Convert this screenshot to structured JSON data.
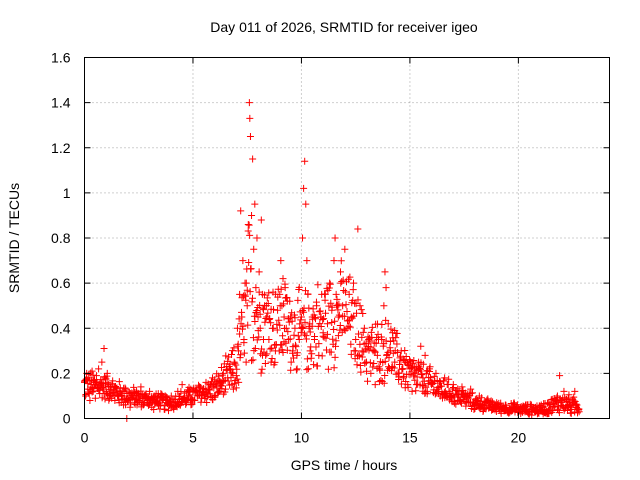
{
  "chart_data": {
    "type": "scatter",
    "title": "Day 011 of 2026, SRMTID for receiver igeo",
    "xlabel": "GPS time / hours",
    "ylabel": "SRMTID / TECUs",
    "xlim": [
      0,
      24.2
    ],
    "ylim": [
      0,
      1.6
    ],
    "xticks": [
      0,
      5,
      10,
      15,
      20
    ],
    "xtick_labels": [
      "0",
      "5",
      "10",
      "15",
      "20"
    ],
    "yticks": [
      0,
      0.2,
      0.4,
      0.6,
      0.8,
      1,
      1.2,
      1.4,
      1.6
    ],
    "ytick_labels": [
      "0",
      "0.2",
      "0.4",
      "0.6",
      "0.8",
      "1",
      "1.2",
      "1.4",
      "1.6"
    ],
    "grid": true,
    "marker": "+",
    "series": [
      {
        "name": "SRMTID",
        "color": "#ff0000",
        "points": [
          [
            0.0,
            0.16
          ],
          [
            0.05,
            0.1
          ],
          [
            0.1,
            0.2
          ],
          [
            0.15,
            0.13
          ],
          [
            0.2,
            0.18
          ],
          [
            0.25,
            0.08
          ],
          [
            0.3,
            0.15
          ],
          [
            0.35,
            0.21
          ],
          [
            0.4,
            0.12
          ],
          [
            0.45,
            0.17
          ],
          [
            0.5,
            0.09
          ],
          [
            0.55,
            0.19
          ],
          [
            0.6,
            0.14
          ],
          [
            0.65,
            0.22
          ],
          [
            0.7,
            0.11
          ],
          [
            0.75,
            0.16
          ],
          [
            0.8,
            0.25
          ],
          [
            0.85,
            0.13
          ],
          [
            0.9,
            0.31
          ],
          [
            0.95,
            0.18
          ],
          [
            1.0,
            0.12
          ],
          [
            1.05,
            0.2
          ],
          [
            1.1,
            0.15
          ],
          [
            1.15,
            0.09
          ],
          [
            1.2,
            0.14
          ],
          [
            1.3,
            0.11
          ],
          [
            1.4,
            0.08
          ],
          [
            1.5,
            0.12
          ],
          [
            1.6,
            0.07
          ],
          [
            1.7,
            0.1
          ],
          [
            1.8,
            0.06
          ],
          [
            1.9,
            0.13
          ],
          [
            1.95,
            0.0
          ],
          [
            2.0,
            0.09
          ],
          [
            2.1,
            0.05
          ],
          [
            2.2,
            0.11
          ],
          [
            2.3,
            0.07
          ],
          [
            2.4,
            0.12
          ],
          [
            2.5,
            0.08
          ],
          [
            2.6,
            0.14
          ],
          [
            2.7,
            0.06
          ],
          [
            2.8,
            0.1
          ],
          [
            2.9,
            0.08
          ],
          [
            3.0,
            0.12
          ],
          [
            3.1,
            0.05
          ],
          [
            3.2,
            0.09
          ],
          [
            3.3,
            0.07
          ],
          [
            3.4,
            0.11
          ],
          [
            3.5,
            0.06
          ],
          [
            3.6,
            0.1
          ],
          [
            3.7,
            0.04
          ],
          [
            3.8,
            0.08
          ],
          [
            3.9,
            0.06
          ],
          [
            4.0,
            0.1
          ],
          [
            4.1,
            0.05
          ],
          [
            4.2,
            0.07
          ],
          [
            4.3,
            0.12
          ],
          [
            4.4,
            0.06
          ],
          [
            4.5,
            0.15
          ],
          [
            4.6,
            0.09
          ],
          [
            4.7,
            0.07
          ],
          [
            4.8,
            0.1
          ],
          [
            4.9,
            0.13
          ],
          [
            5.0,
            0.08
          ],
          [
            5.1,
            0.12
          ],
          [
            5.2,
            0.1
          ],
          [
            5.3,
            0.14
          ],
          [
            5.4,
            0.09
          ],
          [
            5.5,
            0.13
          ],
          [
            5.6,
            0.16
          ],
          [
            5.7,
            0.11
          ],
          [
            5.8,
            0.15
          ],
          [
            5.9,
            0.18
          ],
          [
            6.0,
            0.1
          ],
          [
            6.1,
            0.14
          ],
          [
            6.2,
            0.12
          ],
          [
            6.3,
            0.16
          ],
          [
            6.4,
            0.2
          ],
          [
            6.5,
            0.13
          ],
          [
            6.6,
            0.18
          ],
          [
            6.7,
            0.22
          ],
          [
            6.8,
            0.15
          ],
          [
            6.9,
            0.25
          ],
          [
            7.0,
            0.19
          ],
          [
            7.05,
            0.4
          ],
          [
            7.1,
            0.3
          ],
          [
            7.15,
            0.55
          ],
          [
            7.2,
            0.92
          ],
          [
            7.25,
            0.45
          ],
          [
            7.3,
            0.7
          ],
          [
            7.35,
            0.35
          ],
          [
            7.4,
            0.6
          ],
          [
            7.45,
            0.25
          ],
          [
            7.5,
            0.5
          ],
          [
            7.55,
            0.86
          ],
          [
            7.6,
            1.4
          ],
          [
            7.62,
            1.33
          ],
          [
            7.65,
            1.25
          ],
          [
            7.7,
            0.9
          ],
          [
            7.75,
            1.15
          ],
          [
            7.8,
            0.75
          ],
          [
            7.85,
            0.95
          ],
          [
            7.9,
            0.58
          ],
          [
            7.95,
            0.8
          ],
          [
            8.0,
            0.45
          ],
          [
            8.05,
            0.65
          ],
          [
            8.1,
            0.4
          ],
          [
            8.15,
            0.88
          ],
          [
            8.2,
            0.55
          ],
          [
            8.25,
            0.35
          ],
          [
            8.3,
            0.5
          ],
          [
            8.35,
            0.28
          ],
          [
            8.4,
            0.45
          ],
          [
            8.5,
            0.35
          ],
          [
            8.6,
            0.25
          ],
          [
            8.7,
            0.4
          ],
          [
            8.8,
            0.3
          ],
          [
            8.9,
            0.48
          ],
          [
            9.0,
            0.55
          ],
          [
            9.05,
            0.7
          ],
          [
            9.1,
            0.5
          ],
          [
            9.15,
            0.62
          ],
          [
            9.2,
            0.45
          ],
          [
            9.25,
            0.58
          ],
          [
            9.3,
            0.4
          ],
          [
            9.35,
            0.52
          ],
          [
            9.4,
            0.35
          ],
          [
            9.5,
            0.45
          ],
          [
            9.6,
            0.3
          ],
          [
            9.7,
            0.4
          ],
          [
            9.8,
            0.22
          ],
          [
            9.9,
            0.35
          ],
          [
            10.0,
            0.45
          ],
          [
            10.05,
            0.8
          ],
          [
            10.1,
            1.02
          ],
          [
            10.15,
            1.14
          ],
          [
            10.2,
            0.95
          ],
          [
            10.25,
            0.7
          ],
          [
            10.3,
            0.55
          ],
          [
            10.35,
            0.4
          ],
          [
            10.4,
            0.3
          ],
          [
            10.5,
            0.45
          ],
          [
            10.6,
            0.35
          ],
          [
            10.7,
            0.5
          ],
          [
            10.8,
            0.28
          ],
          [
            10.9,
            0.45
          ],
          [
            11.0,
            0.38
          ],
          [
            11.1,
            0.55
          ],
          [
            11.2,
            0.42
          ],
          [
            11.3,
            0.6
          ],
          [
            11.4,
            0.48
          ],
          [
            11.5,
            0.7
          ],
          [
            11.55,
            0.8
          ],
          [
            11.6,
            0.55
          ],
          [
            11.7,
            0.45
          ],
          [
            11.8,
            0.65
          ],
          [
            11.9,
            0.5
          ],
          [
            12.0,
            0.75
          ],
          [
            12.1,
            0.4
          ],
          [
            12.2,
            0.55
          ],
          [
            12.3,
            0.45
          ],
          [
            12.4,
            0.6
          ],
          [
            12.5,
            0.35
          ],
          [
            12.6,
            0.84
          ],
          [
            12.7,
            0.5
          ],
          [
            12.8,
            0.3
          ],
          [
            12.9,
            0.4
          ],
          [
            13.0,
            0.25
          ],
          [
            13.1,
            0.35
          ],
          [
            13.2,
            0.2
          ],
          [
            13.3,
            0.3
          ],
          [
            13.4,
            0.15
          ],
          [
            13.5,
            0.28
          ],
          [
            13.6,
            0.22
          ],
          [
            13.7,
            0.35
          ],
          [
            13.8,
            0.5
          ],
          [
            13.85,
            0.65
          ],
          [
            13.9,
            0.58
          ],
          [
            14.0,
            0.42
          ],
          [
            14.1,
            0.3
          ],
          [
            14.2,
            0.38
          ],
          [
            14.3,
            0.25
          ],
          [
            14.4,
            0.33
          ],
          [
            14.5,
            0.2
          ],
          [
            14.6,
            0.3
          ],
          [
            14.7,
            0.18
          ],
          [
            14.8,
            0.25
          ],
          [
            14.9,
            0.15
          ],
          [
            15.0,
            0.22
          ],
          [
            15.1,
            0.12
          ],
          [
            15.2,
            0.2
          ],
          [
            15.3,
            0.15
          ],
          [
            15.4,
            0.25
          ],
          [
            15.5,
            0.32
          ],
          [
            15.6,
            0.18
          ],
          [
            15.7,
            0.28
          ],
          [
            15.8,
            0.12
          ],
          [
            15.9,
            0.22
          ],
          [
            16.0,
            0.15
          ],
          [
            16.2,
            0.2
          ],
          [
            16.4,
            0.1
          ],
          [
            16.6,
            0.18
          ],
          [
            16.8,
            0.12
          ],
          [
            17.0,
            0.15
          ],
          [
            17.2,
            0.08
          ],
          [
            17.4,
            0.14
          ],
          [
            17.6,
            0.1
          ],
          [
            17.8,
            0.13
          ],
          [
            18.0,
            0.06
          ],
          [
            18.2,
            0.1
          ],
          [
            18.4,
            0.05
          ],
          [
            18.6,
            0.08
          ],
          [
            18.8,
            0.04
          ],
          [
            19.0,
            0.07
          ],
          [
            19.2,
            0.03
          ],
          [
            19.4,
            0.06
          ],
          [
            19.6,
            0.04
          ],
          [
            19.8,
            0.07
          ],
          [
            20.0,
            0.03
          ],
          [
            20.2,
            0.05
          ],
          [
            20.4,
            0.04
          ],
          [
            20.6,
            0.06
          ],
          [
            20.8,
            0.03
          ],
          [
            21.0,
            0.05
          ],
          [
            21.2,
            0.04
          ],
          [
            21.4,
            0.07
          ],
          [
            21.6,
            0.05
          ],
          [
            21.8,
            0.1
          ],
          [
            21.9,
            0.19
          ],
          [
            22.0,
            0.08
          ],
          [
            22.1,
            0.12
          ],
          [
            22.2,
            0.05
          ],
          [
            22.3,
            0.09
          ],
          [
            22.4,
            0.04
          ],
          [
            22.5,
            0.07
          ],
          [
            22.6,
            0.12
          ],
          [
            22.7,
            0.06
          ],
          [
            22.8,
            0.03
          ]
        ]
      }
    ],
    "envelope": {
      "description_hours": [
        0,
        1,
        2,
        3,
        4,
        5,
        6,
        7,
        7.6,
        8,
        9,
        10,
        11,
        12,
        13,
        14,
        15,
        16,
        17,
        18,
        19,
        20,
        21,
        22,
        22.8
      ],
      "center": [
        0.15,
        0.14,
        0.1,
        0.08,
        0.07,
        0.1,
        0.13,
        0.22,
        0.55,
        0.45,
        0.42,
        0.38,
        0.42,
        0.48,
        0.3,
        0.3,
        0.2,
        0.15,
        0.11,
        0.07,
        0.05,
        0.04,
        0.04,
        0.07,
        0.05
      ],
      "spread": [
        0.05,
        0.05,
        0.04,
        0.03,
        0.03,
        0.04,
        0.05,
        0.1,
        0.3,
        0.2,
        0.18,
        0.15,
        0.18,
        0.18,
        0.12,
        0.12,
        0.08,
        0.06,
        0.04,
        0.03,
        0.02,
        0.02,
        0.02,
        0.04,
        0.03
      ]
    }
  }
}
